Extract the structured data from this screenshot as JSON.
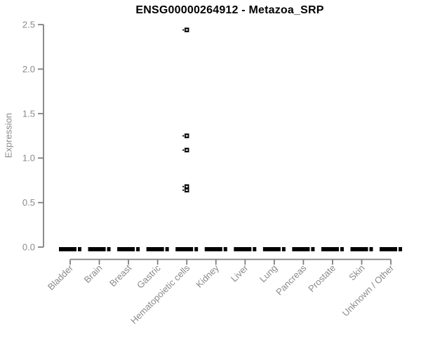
{
  "chart_data": {
    "type": "boxplot",
    "title": "ENSG00000264912 - Metazoa_SRP",
    "xlabel": "",
    "ylabel": "Expression",
    "ylim": [
      0.0,
      2.5
    ],
    "y_tick_labels": [
      "0.0",
      "0.5",
      "1.0",
      "1.5",
      "2.0",
      "2.5"
    ],
    "grid": false,
    "legend": "none",
    "categories": [
      "Bladder",
      "Brain",
      "Breast",
      "Gastric",
      "Hematopoietic cells",
      "Kidney",
      "Liver",
      "Lung",
      "Pancreas",
      "Prostate",
      "Skin",
      "Unknown / Other"
    ],
    "boxes": [
      {
        "category": "Bladder",
        "median": 0.0,
        "q1": 0.0,
        "q3": 0.0,
        "whisker_low": 0.0,
        "whisker_high": 0.0,
        "outliers": []
      },
      {
        "category": "Brain",
        "median": 0.0,
        "q1": 0.0,
        "q3": 0.0,
        "whisker_low": 0.0,
        "whisker_high": 0.0,
        "outliers": []
      },
      {
        "category": "Breast",
        "median": 0.0,
        "q1": 0.0,
        "q3": 0.0,
        "whisker_low": 0.0,
        "whisker_high": 0.0,
        "outliers": []
      },
      {
        "category": "Gastric",
        "median": 0.0,
        "q1": 0.0,
        "q3": 0.0,
        "whisker_low": 0.0,
        "whisker_high": 0.0,
        "outliers": []
      },
      {
        "category": "Hematopoietic cells",
        "median": 0.0,
        "q1": 0.0,
        "q3": 0.0,
        "whisker_low": 0.0,
        "whisker_high": 0.0,
        "outliers": [
          2.44,
          1.25,
          1.09,
          0.68,
          0.64
        ]
      },
      {
        "category": "Kidney",
        "median": 0.0,
        "q1": 0.0,
        "q3": 0.0,
        "whisker_low": 0.0,
        "whisker_high": 0.0,
        "outliers": []
      },
      {
        "category": "Liver",
        "median": 0.0,
        "q1": 0.0,
        "q3": 0.0,
        "whisker_low": 0.0,
        "whisker_high": 0.0,
        "outliers": []
      },
      {
        "category": "Lung",
        "median": 0.0,
        "q1": 0.0,
        "q3": 0.0,
        "whisker_low": 0.0,
        "whisker_high": 0.0,
        "outliers": []
      },
      {
        "category": "Pancreas",
        "median": 0.0,
        "q1": 0.0,
        "q3": 0.0,
        "whisker_low": 0.0,
        "whisker_high": 0.0,
        "outliers": []
      },
      {
        "category": "Prostate",
        "median": 0.0,
        "q1": 0.0,
        "q3": 0.0,
        "whisker_low": 0.0,
        "whisker_high": 0.0,
        "outliers": []
      },
      {
        "category": "Skin",
        "median": 0.0,
        "q1": 0.0,
        "q3": 0.0,
        "whisker_low": 0.0,
        "whisker_high": 0.0,
        "outliers": []
      },
      {
        "category": "Unknown / Other",
        "median": 0.0,
        "q1": 0.0,
        "q3": 0.0,
        "whisker_low": 0.0,
        "whisker_high": 0.0,
        "outliers": []
      }
    ],
    "colors": {
      "box": "#000000",
      "axis": "#7f7f7f",
      "tick_text": "#8a8a8a",
      "title_text": "#000000",
      "background": "#ffffff"
    }
  }
}
